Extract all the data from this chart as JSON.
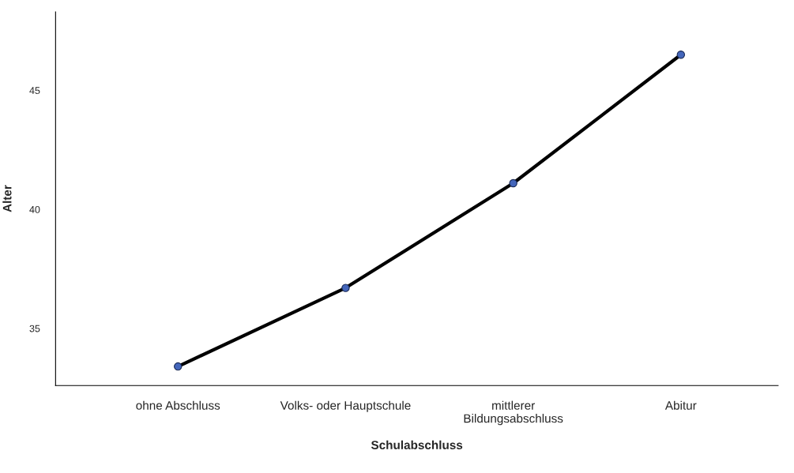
{
  "chart_data": {
    "type": "line",
    "xlabel": "Schulabschluss",
    "ylabel": "Alter",
    "categories": [
      "ohne Abschluss",
      "Volks- oder Hauptschule",
      "mittlerer\nBildungsabschluss",
      "Abitur"
    ],
    "series": [
      {
        "color": "#000000",
        "colors": [
          "#4466bb",
          "#4466bb",
          "#4466bb",
          "#4466bb"
        ],
        "values": [
          33.4,
          36.7,
          41.1,
          46.5
        ]
      }
    ],
    "ylim": [
      32.6,
      48.3
    ],
    "yticks": [
      35,
      40,
      45
    ],
    "marker": "circle",
    "grid": false
  }
}
